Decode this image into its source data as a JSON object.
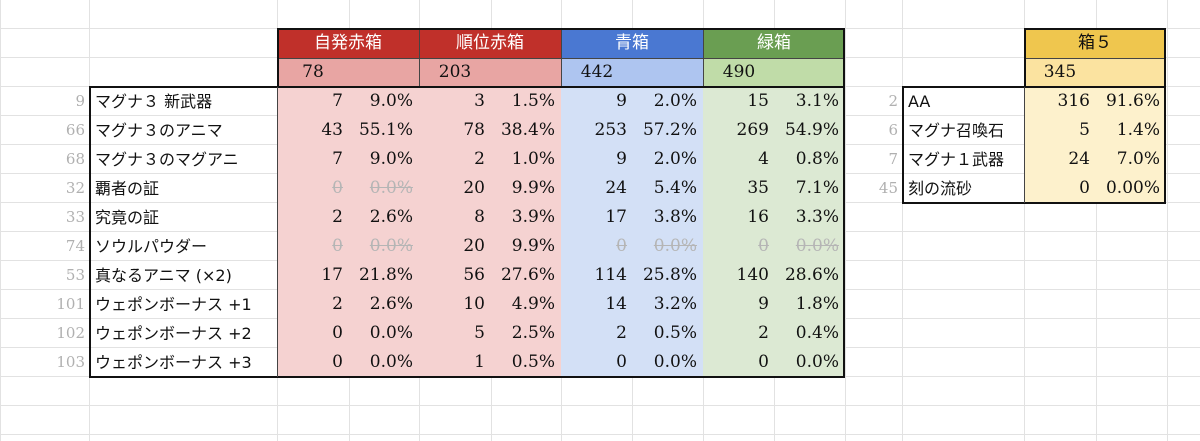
{
  "colors": {
    "red_header": "#c0302a",
    "red_cell": "#e8a5a3",
    "red_light": "#f5d2d1",
    "blue_header": "#4a78d2",
    "blue_cell": "#aec5f0",
    "blue_light": "#d3e0f6",
    "green_header": "#6a9e52",
    "green_cell": "#c0dca8",
    "green_light": "#dce9d3",
    "yellow_header": "#efc64e",
    "yellow_cell": "#fbe3a0",
    "yellow_light": "#fdf1cc"
  },
  "left_table": {
    "groups": [
      {
        "header": "自発赤箱",
        "total": "78",
        "color_key": "red"
      },
      {
        "header": "順位赤箱",
        "total": "203",
        "color_key": "red"
      },
      {
        "header": "青箱",
        "total": "442",
        "color_key": "blue"
      },
      {
        "header": "緑箱",
        "total": "490",
        "color_key": "green"
      }
    ],
    "rows": [
      {
        "id": "9",
        "label": "マグナ３ 新武器",
        "cells": [
          [
            "7",
            "9.0%"
          ],
          [
            "3",
            "1.5%"
          ],
          [
            "9",
            "2.0%"
          ],
          [
            "15",
            "3.1%"
          ]
        ]
      },
      {
        "id": "66",
        "label": "マグナ３のアニマ",
        "cells": [
          [
            "43",
            "55.1%"
          ],
          [
            "78",
            "38.4%"
          ],
          [
            "253",
            "57.2%"
          ],
          [
            "269",
            "54.9%"
          ]
        ]
      },
      {
        "id": "68",
        "label": "マグナ３のマグアニ",
        "cells": [
          [
            "7",
            "9.0%"
          ],
          [
            "2",
            "1.0%"
          ],
          [
            "9",
            "2.0%"
          ],
          [
            "4",
            "0.8%"
          ]
        ]
      },
      {
        "id": "32",
        "label": "覇者の証",
        "cells": [
          [
            "0",
            "0.0%"
          ],
          [
            "20",
            "9.9%"
          ],
          [
            "24",
            "5.4%"
          ],
          [
            "35",
            "7.1%"
          ]
        ],
        "strike": [
          true,
          false,
          false,
          false
        ]
      },
      {
        "id": "33",
        "label": "究竟の証",
        "cells": [
          [
            "2",
            "2.6%"
          ],
          [
            "8",
            "3.9%"
          ],
          [
            "17",
            "3.8%"
          ],
          [
            "16",
            "3.3%"
          ]
        ]
      },
      {
        "id": "74",
        "label": "ソウルパウダー",
        "cells": [
          [
            "0",
            "0.0%"
          ],
          [
            "20",
            "9.9%"
          ],
          [
            "0",
            "0.0%"
          ],
          [
            "0",
            "0.0%"
          ]
        ],
        "strike": [
          true,
          false,
          true,
          true
        ]
      },
      {
        "id": "53",
        "label": "真なるアニマ (×2)",
        "cells": [
          [
            "17",
            "21.8%"
          ],
          [
            "56",
            "27.6%"
          ],
          [
            "114",
            "25.8%"
          ],
          [
            "140",
            "28.6%"
          ]
        ]
      },
      {
        "id": "101",
        "label": "ウェポンボーナス +1",
        "cells": [
          [
            "2",
            "2.6%"
          ],
          [
            "10",
            "4.9%"
          ],
          [
            "14",
            "3.2%"
          ],
          [
            "9",
            "1.8%"
          ]
        ]
      },
      {
        "id": "102",
        "label": "ウェポンボーナス +2",
        "cells": [
          [
            "0",
            "0.0%"
          ],
          [
            "5",
            "2.5%"
          ],
          [
            "2",
            "0.5%"
          ],
          [
            "2",
            "0.4%"
          ]
        ]
      },
      {
        "id": "103",
        "label": "ウェポンボーナス +3",
        "cells": [
          [
            "0",
            "0.0%"
          ],
          [
            "1",
            "0.5%"
          ],
          [
            "0",
            "0.0%"
          ],
          [
            "0",
            "0.0%"
          ]
        ]
      }
    ]
  },
  "right_table": {
    "header": "箱５",
    "total": "345",
    "rows": [
      {
        "id": "2",
        "label": "AA",
        "count": "316",
        "pct": "91.6%"
      },
      {
        "id": "6",
        "label": "マグナ召喚石",
        "count": "5",
        "pct": "1.4%"
      },
      {
        "id": "7",
        "label": "マグナ１武器",
        "count": "24",
        "pct": "7.0%"
      },
      {
        "id": "45",
        "label": "刻の流砂",
        "count": "0",
        "pct": "0.00%"
      }
    ]
  }
}
